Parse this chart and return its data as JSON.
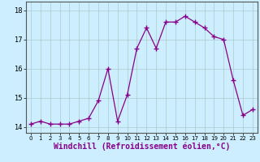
{
  "x": [
    0,
    1,
    2,
    3,
    4,
    5,
    6,
    7,
    8,
    9,
    10,
    11,
    12,
    13,
    14,
    15,
    16,
    17,
    18,
    19,
    20,
    21,
    22,
    23
  ],
  "y": [
    14.1,
    14.2,
    14.1,
    14.1,
    14.1,
    14.2,
    14.3,
    14.9,
    16.0,
    14.2,
    15.1,
    16.7,
    17.4,
    16.7,
    17.6,
    17.6,
    17.8,
    17.6,
    17.4,
    17.1,
    17.0,
    15.6,
    14.4,
    14.6
  ],
  "line_color": "#880088",
  "marker": "+",
  "markersize": 4,
  "background_color": "#cceeff",
  "grid_color": "#aacccc",
  "xlabel": "Windchill (Refroidissement éolien,°C)",
  "xlabel_fontsize": 7,
  "ylim": [
    13.8,
    18.3
  ],
  "yticks": [
    14,
    15,
    16,
    17,
    18
  ],
  "xlim": [
    -0.5,
    23.5
  ],
  "xticks": [
    0,
    1,
    2,
    3,
    4,
    5,
    6,
    7,
    8,
    9,
    10,
    11,
    12,
    13,
    14,
    15,
    16,
    17,
    18,
    19,
    20,
    21,
    22,
    23
  ]
}
